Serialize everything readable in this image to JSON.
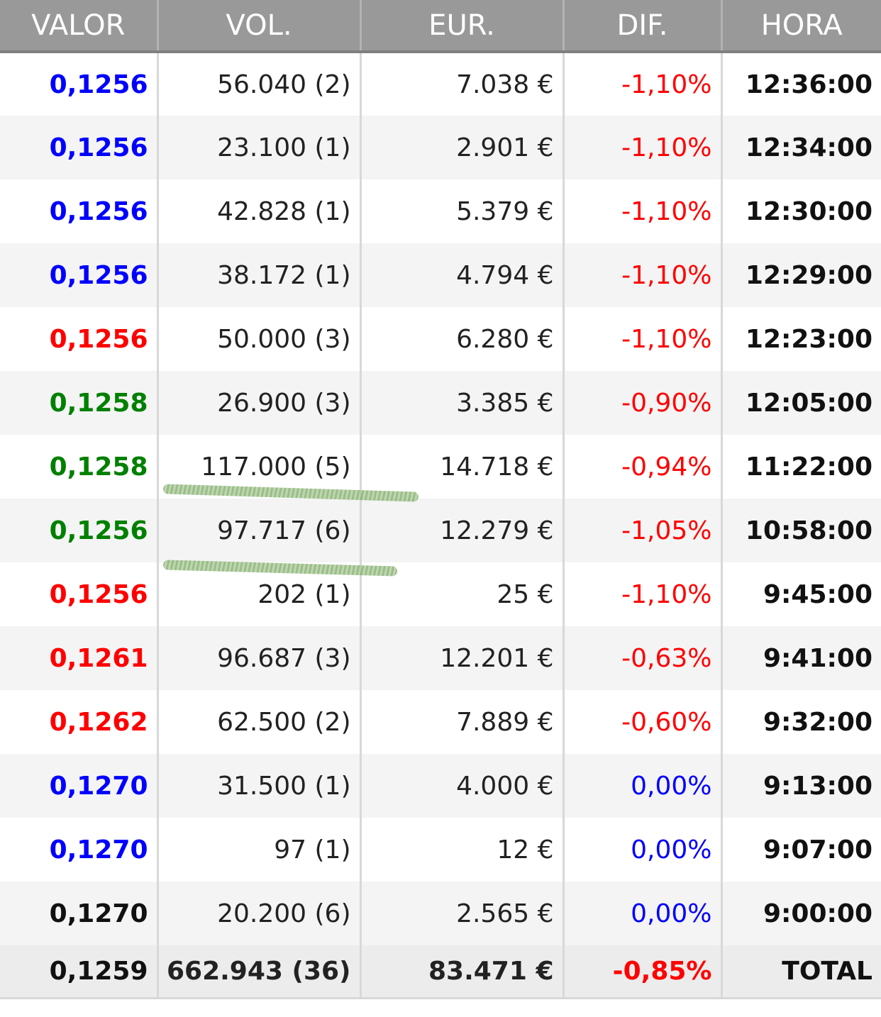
{
  "headers": {
    "valor": "VALOR",
    "vol": "VOL.",
    "eur": "EUR.",
    "dif": "DIF.",
    "hora": "HORA"
  },
  "rows": [
    {
      "valor": "0,1256",
      "valor_color": "#0000ff",
      "vol": "56.040 (2)",
      "eur": "7.038 €",
      "dif": "-1,10%",
      "dif_color": "#ff0000",
      "hora": "12:36:00"
    },
    {
      "valor": "0,1256",
      "valor_color": "#0000ff",
      "vol": "23.100 (1)",
      "eur": "2.901 €",
      "dif": "-1,10%",
      "dif_color": "#ff0000",
      "hora": "12:34:00"
    },
    {
      "valor": "0,1256",
      "valor_color": "#0000ff",
      "vol": "42.828 (1)",
      "eur": "5.379 €",
      "dif": "-1,10%",
      "dif_color": "#ff0000",
      "hora": "12:30:00"
    },
    {
      "valor": "0,1256",
      "valor_color": "#0000ff",
      "vol": "38.172 (1)",
      "eur": "4.794 €",
      "dif": "-1,10%",
      "dif_color": "#ff0000",
      "hora": "12:29:00"
    },
    {
      "valor": "0,1256",
      "valor_color": "#ff0000",
      "vol": "50.000 (3)",
      "eur": "6.280 €",
      "dif": "-1,10%",
      "dif_color": "#ff0000",
      "hora": "12:23:00"
    },
    {
      "valor": "0,1258",
      "valor_color": "#008000",
      "vol": "26.900 (3)",
      "eur": "3.385 €",
      "dif": "-0,90%",
      "dif_color": "#ff0000",
      "hora": "12:05:00"
    },
    {
      "valor": "0,1258",
      "valor_color": "#008000",
      "vol": "117.000 (5)",
      "eur": "14.718 €",
      "dif": "-0,94%",
      "dif_color": "#ff0000",
      "hora": "11:22:00"
    },
    {
      "valor": "0,1256",
      "valor_color": "#008000",
      "vol": "97.717 (6)",
      "eur": "12.279 €",
      "dif": "-1,05%",
      "dif_color": "#ff0000",
      "hora": "10:58:00"
    },
    {
      "valor": "0,1256",
      "valor_color": "#ff0000",
      "vol": "202 (1)",
      "eur": "25 €",
      "dif": "-1,10%",
      "dif_color": "#ff0000",
      "hora": "9:45:00"
    },
    {
      "valor": "0,1261",
      "valor_color": "#ff0000",
      "vol": "96.687 (3)",
      "eur": "12.201 €",
      "dif": "-0,63%",
      "dif_color": "#ff0000",
      "hora": "9:41:00"
    },
    {
      "valor": "0,1262",
      "valor_color": "#ff0000",
      "vol": "62.500 (2)",
      "eur": "7.889 €",
      "dif": "-0,60%",
      "dif_color": "#ff0000",
      "hora": "9:32:00"
    },
    {
      "valor": "0,1270",
      "valor_color": "#0000ff",
      "vol": "31.500 (1)",
      "eur": "4.000 €",
      "dif": "0,00%",
      "dif_color": "#0000ff",
      "hora": "9:13:00"
    },
    {
      "valor": "0,1270",
      "valor_color": "#0000ff",
      "vol": "97 (1)",
      "eur": "12 €",
      "dif": "0,00%",
      "dif_color": "#0000ff",
      "hora": "9:07:00"
    },
    {
      "valor": "0,1270",
      "valor_color": "#111111",
      "vol": "20.200 (6)",
      "eur": "2.565 €",
      "dif": "0,00%",
      "dif_color": "#0000ff",
      "hora": "9:00:00"
    }
  ],
  "total": {
    "valor": "0,1259",
    "vol": "662.943 (36)",
    "eur": "83.471 €",
    "dif": "-0,85%",
    "dif_color": "#ff0000",
    "hora": "TOTAL"
  },
  "colors": {
    "header_bg": "#999999",
    "row_alt_bg": "#f4f4f4",
    "highlight_scribble": "#7aa860"
  }
}
